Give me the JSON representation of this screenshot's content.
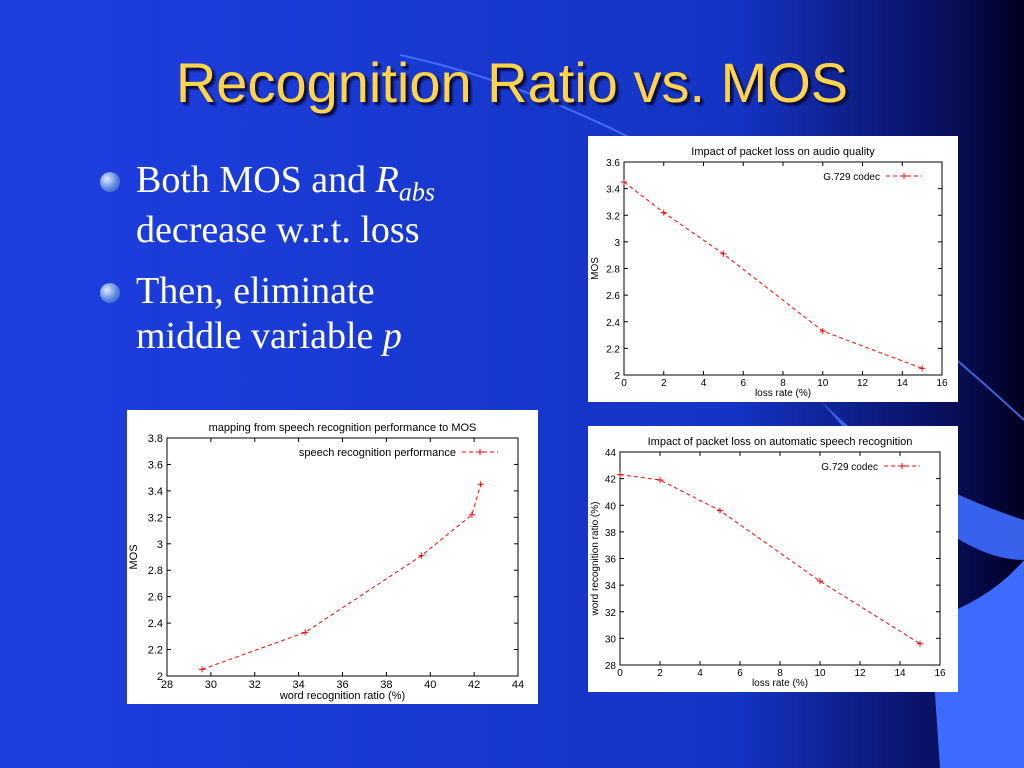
{
  "slide": {
    "title": "Recognition Ratio vs. MOS",
    "bullets": [
      {
        "pre": "Both MOS and ",
        "var": "R",
        "sub": "abs",
        "line2": "decrease w.r.t. loss"
      },
      {
        "line1": "Then, eliminate",
        "line2_pre": "middle variable ",
        "line2_var": "p"
      }
    ],
    "colors": {
      "title": "#FFD34A",
      "text": "#FFFFFF",
      "series": "#FF0000",
      "bg_dark": "#000033",
      "bg_blue": "#1E3FE0"
    }
  },
  "chart_data": [
    {
      "id": "audio",
      "type": "line",
      "title": "Impact of packet loss on audio quality",
      "xlabel": "loss rate (%)",
      "ylabel": "MOS",
      "xlim": [
        0,
        16
      ],
      "ylim": [
        2,
        3.6
      ],
      "xticks": [
        "0",
        "2",
        "4",
        "6",
        "8",
        "10",
        "12",
        "14",
        "16"
      ],
      "yticks": [
        "2",
        "2.2",
        "2.4",
        "2.6",
        "2.8",
        "3",
        "3.2",
        "3.4",
        "3.6"
      ],
      "grid": false,
      "legend": "top-right",
      "series": [
        {
          "name": "G.729 codec",
          "x": [
            0,
            2,
            5,
            10,
            15
          ],
          "y": [
            3.45,
            3.22,
            2.91,
            2.33,
            2.05
          ]
        }
      ]
    },
    {
      "id": "asr",
      "type": "line",
      "title": "Impact of packet loss on automatic speech recognition",
      "xlabel": "loss rate (%)",
      "ylabel": "word recognition ratio (%)",
      "xlim": [
        0,
        16
      ],
      "ylim": [
        28,
        44
      ],
      "xticks": [
        "0",
        "2",
        "4",
        "6",
        "8",
        "10",
        "12",
        "14",
        "16"
      ],
      "yticks": [
        "28",
        "30",
        "32",
        "34",
        "36",
        "38",
        "40",
        "42",
        "44"
      ],
      "grid": false,
      "legend": "top-right",
      "series": [
        {
          "name": "G.729 codec",
          "x": [
            0,
            2,
            5,
            10,
            15
          ],
          "y": [
            42.3,
            41.9,
            39.6,
            34.3,
            29.6
          ]
        }
      ]
    },
    {
      "id": "map",
      "type": "line",
      "title": "mapping from speech recognition performance to MOS",
      "xlabel": "word recognition ratio (%)",
      "ylabel": "MOS",
      "xlim": [
        28,
        44
      ],
      "ylim": [
        2,
        3.8
      ],
      "xticks": [
        "28",
        "30",
        "32",
        "34",
        "36",
        "38",
        "40",
        "42",
        "44"
      ],
      "yticks": [
        "2",
        "2.2",
        "2.4",
        "2.6",
        "2.8",
        "3",
        "3.2",
        "3.4",
        "3.6",
        "3.8"
      ],
      "grid": false,
      "legend": "top-right",
      "series": [
        {
          "name": "speech recognition performance",
          "x": [
            29.6,
            34.3,
            39.6,
            41.9,
            42.3
          ],
          "y": [
            2.05,
            2.33,
            2.91,
            3.22,
            3.45
          ]
        }
      ]
    }
  ]
}
